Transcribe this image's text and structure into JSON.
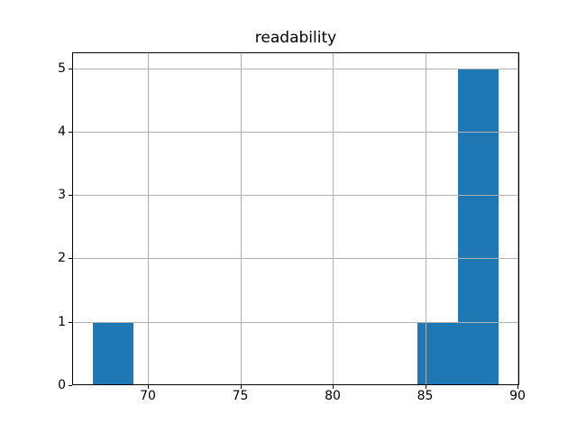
{
  "chart_data": {
    "type": "histogram",
    "title": "readability",
    "xlabel": "",
    "ylabel": "",
    "bin_edges": [
      67.0,
      69.2,
      71.4,
      73.6,
      75.8,
      78.0,
      80.2,
      82.4,
      84.6,
      86.8,
      89.0
    ],
    "counts": [
      1,
      0,
      0,
      0,
      0,
      0,
      0,
      0,
      1,
      5
    ],
    "xticks": [
      70,
      75,
      80,
      85,
      90
    ],
    "yticks": [
      0,
      1,
      2,
      3,
      4,
      5
    ],
    "xlim": [
      65.9,
      90.1
    ],
    "ylim": [
      0,
      5.25
    ],
    "grid": true,
    "legend": false,
    "bar_color": "#1f77b4",
    "grid_color": "#b0b0b0",
    "spine_color": "#000000",
    "background_color": "#ffffff"
  }
}
